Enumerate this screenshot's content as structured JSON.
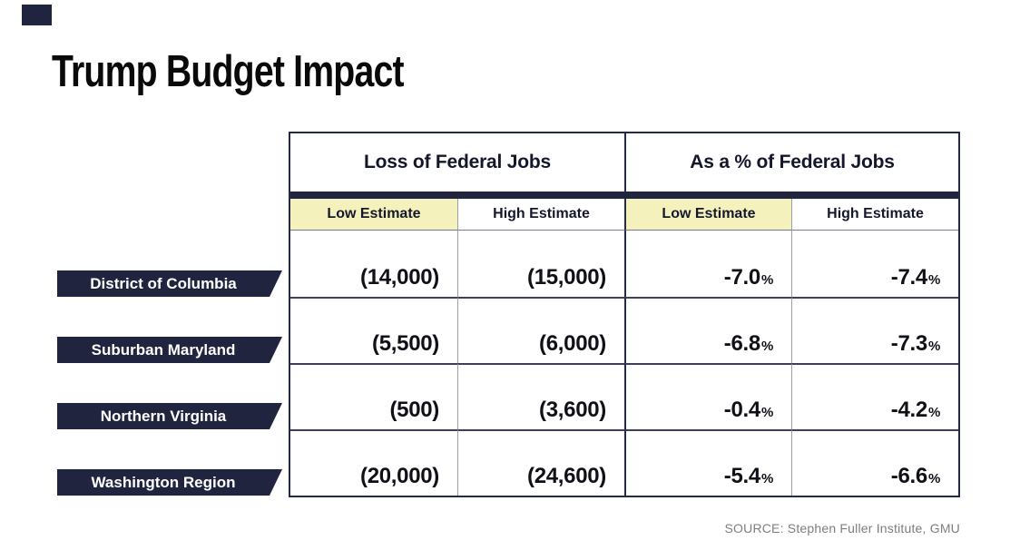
{
  "title": "Trump Budget Impact",
  "table": {
    "group_headers": [
      "Loss of Federal Jobs",
      "As a % of Federal Jobs"
    ],
    "sub_headers": [
      "Low Estimate",
      "High Estimate",
      "Low Estimate",
      "High Estimate"
    ],
    "rows": [
      {
        "label": "District of Columbia",
        "cells": [
          {
            "text": "(14,000)"
          },
          {
            "text": "(15,000)"
          },
          {
            "num": "-7.0",
            "suffix": "%"
          },
          {
            "num": "-7.4",
            "suffix": "%"
          }
        ]
      },
      {
        "label": "Suburban Maryland",
        "cells": [
          {
            "text": "(5,500)"
          },
          {
            "text": "(6,000)"
          },
          {
            "num": "-6.8",
            "suffix": "%"
          },
          {
            "num": "-7.3",
            "suffix": "%"
          }
        ]
      },
      {
        "label": "Northern Virginia",
        "cells": [
          {
            "text": "(500)"
          },
          {
            "text": "(3,600)"
          },
          {
            "num": "-0.4",
            "suffix": "%"
          },
          {
            "num": "-4.2",
            "suffix": "%"
          }
        ]
      },
      {
        "label": "Washington Region",
        "cells": [
          {
            "text": "(20,000)"
          },
          {
            "text": "(24,600)"
          },
          {
            "num": "-5.4",
            "suffix": "%"
          },
          {
            "num": "-6.6",
            "suffix": "%"
          }
        ]
      }
    ]
  },
  "source": "SOURCE: Stephen Fuller Institute, GMU",
  "colors": {
    "navy": "#20243f",
    "pale_yellow": "#f5f1bd",
    "grid_dark": "#262a45",
    "grid_light": "#9b9daa",
    "source_gray": "#7e7e7e"
  },
  "chart_data": {
    "type": "table",
    "title": "Trump Budget Impact",
    "column_groups": [
      "Loss of Federal Jobs",
      "As a % of Federal Jobs"
    ],
    "columns": [
      "Low Estimate",
      "High Estimate",
      "Low Estimate (%)",
      "High Estimate (%)"
    ],
    "row_labels": [
      "District of Columbia",
      "Suburban Maryland",
      "Northern Virginia",
      "Washington Region"
    ],
    "loss_of_federal_jobs": {
      "low_estimate": [
        -14000,
        -5500,
        -500,
        -20000
      ],
      "high_estimate": [
        -15000,
        -6000,
        -3600,
        -24600
      ]
    },
    "pct_of_federal_jobs": {
      "low_estimate": [
        -7.0,
        -6.8,
        -0.4,
        -5.4
      ],
      "high_estimate": [
        -7.4,
        -7.3,
        -4.2,
        -6.6
      ]
    },
    "highlighted_columns": [
      "Low Estimate",
      "Low Estimate (%)"
    ],
    "source": "SOURCE: Stephen Fuller Institute, GMU"
  }
}
